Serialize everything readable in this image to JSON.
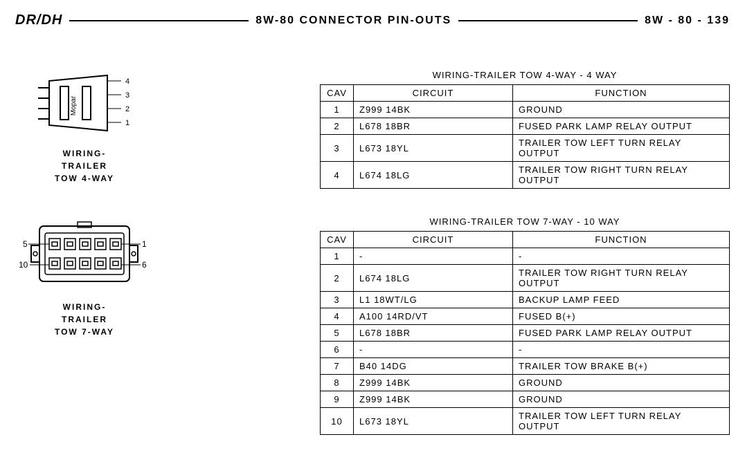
{
  "header": {
    "left": "DR/DH",
    "center": "8W-80 CONNECTOR PIN-OUTS",
    "right": "8W - 80 - 139"
  },
  "section1": {
    "diagram_label_l1": "WIRING-",
    "diagram_label_l2": "TRAILER",
    "diagram_label_l3": "TOW 4-WAY",
    "mopar_text": "Mopar",
    "caption": "WIRING-TRAILER TOW 4-WAY - 4 WAY",
    "columns": {
      "cav": "CAV",
      "circuit": "CIRCUIT",
      "function": "FUNCTION"
    },
    "rows": [
      {
        "cav": "1",
        "circuit": "Z999 14BK",
        "function": "GROUND"
      },
      {
        "cav": "2",
        "circuit": "L678 18BR",
        "function": "FUSED PARK LAMP RELAY OUTPUT"
      },
      {
        "cav": "3",
        "circuit": "L673 18YL",
        "function": "TRAILER TOW LEFT TURN RELAY OUTPUT"
      },
      {
        "cav": "4",
        "circuit": "L674 18LG",
        "function": "TRAILER TOW RIGHT TURN RELAY OUTPUT"
      }
    ],
    "pins": [
      "1",
      "2",
      "3",
      "4"
    ]
  },
  "section2": {
    "diagram_label_l1": "WIRING-",
    "diagram_label_l2": "TRAILER",
    "diagram_label_l3": "TOW 7-WAY",
    "caption": "WIRING-TRAILER TOW 7-WAY - 10 WAY",
    "columns": {
      "cav": "CAV",
      "circuit": "CIRCUIT",
      "function": "FUNCTION"
    },
    "rows": [
      {
        "cav": "1",
        "circuit": "-",
        "function": "-"
      },
      {
        "cav": "2",
        "circuit": "L674 18LG",
        "function": "TRAILER TOW RIGHT TURN RELAY OUTPUT"
      },
      {
        "cav": "3",
        "circuit": "L1 18WT/LG",
        "function": "BACKUP LAMP FEED"
      },
      {
        "cav": "4",
        "circuit": "A100 14RD/VT",
        "function": "FUSED B(+)"
      },
      {
        "cav": "5",
        "circuit": "L678 18BR",
        "function": "FUSED PARK LAMP RELAY OUTPUT"
      },
      {
        "cav": "6",
        "circuit": "-",
        "function": "-"
      },
      {
        "cav": "7",
        "circuit": "B40 14DG",
        "function": "TRAILER TOW BRAKE B(+)"
      },
      {
        "cav": "8",
        "circuit": "Z999 14BK",
        "function": "GROUND"
      },
      {
        "cav": "9",
        "circuit": "Z999 14BK",
        "function": "GROUND"
      },
      {
        "cav": "10",
        "circuit": "L673 18YL",
        "function": "TRAILER TOW LEFT TURN RELAY OUTPUT"
      }
    ],
    "pin_labels": {
      "tl": "5",
      "tr": "1",
      "bl": "10",
      "br": "6"
    }
  },
  "style": {
    "stroke": "#000000",
    "bg": "#ffffff",
    "stroke_width": 1.5
  }
}
